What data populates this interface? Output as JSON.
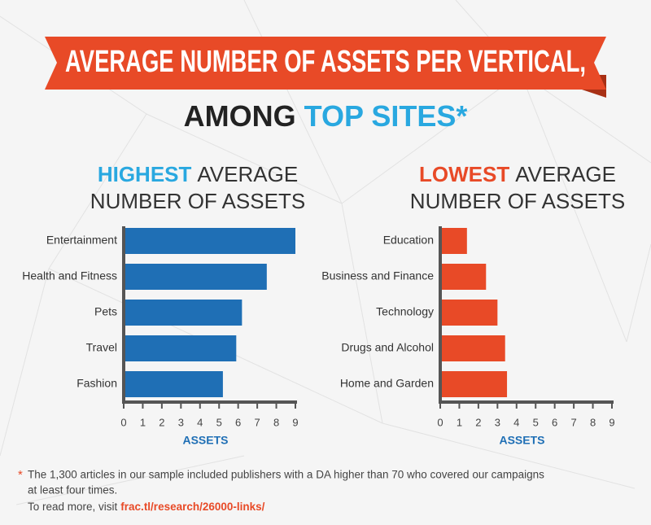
{
  "header": {
    "title_line1": "AVERAGE NUMBER OF ASSETS PER VERTICAL,",
    "title_line2_a": "AMONG",
    "title_line2_b": "TOP SITES*"
  },
  "chart_data": [
    {
      "type": "bar",
      "orientation": "horizontal",
      "title_highlight": "HIGHEST",
      "title_line1": "AVERAGE",
      "title_line2": "NUMBER OF ASSETS",
      "highlight_color": "#29a8e0",
      "color": "#1f6fb5",
      "categories": [
        "Entertainment",
        "Health and Fitness",
        "Pets",
        "Travel",
        "Fashion"
      ],
      "values": [
        9.0,
        7.5,
        6.2,
        5.9,
        5.2
      ],
      "xlim": [
        0,
        9
      ],
      "xticks": [
        0,
        1,
        2,
        3,
        4,
        5,
        6,
        7,
        8,
        9
      ],
      "xlabel": "ASSETS"
    },
    {
      "type": "bar",
      "orientation": "horizontal",
      "title_highlight": "LOWEST",
      "title_line1": "AVERAGE",
      "title_line2": "NUMBER OF ASSETS",
      "highlight_color": "#e84a27",
      "color": "#e84a27",
      "categories": [
        "Education",
        "Business and Finance",
        "Technology",
        "Drugs and Alcohol",
        "Home and Garden"
      ],
      "values": [
        1.4,
        2.4,
        3.0,
        3.4,
        3.5
      ],
      "xlim": [
        0,
        9
      ],
      "xticks": [
        0,
        1,
        2,
        3,
        4,
        5,
        6,
        7,
        8,
        9
      ],
      "xlabel": "ASSETS"
    }
  ],
  "footnote": {
    "marker": "*",
    "line1": "The 1,300 articles in our sample included publishers with a DA higher than 70 who covered our campaigns",
    "line2": "at least four times.",
    "read_more": "To read more, visit",
    "link": "frac.tl/research/26000-links/"
  }
}
